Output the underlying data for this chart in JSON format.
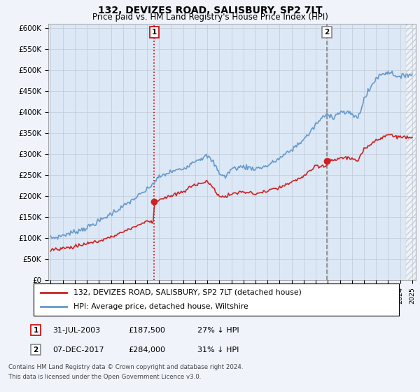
{
  "title": "132, DEVIZES ROAD, SALISBURY, SP2 7LT",
  "subtitle": "Price paid vs. HM Land Registry's House Price Index (HPI)",
  "ylabel_ticks": [
    "£0",
    "£50K",
    "£100K",
    "£150K",
    "£200K",
    "£250K",
    "£300K",
    "£350K",
    "£400K",
    "£450K",
    "£500K",
    "£550K",
    "£600K"
  ],
  "ytick_values": [
    0,
    50000,
    100000,
    150000,
    200000,
    250000,
    300000,
    350000,
    400000,
    450000,
    500000,
    550000,
    600000
  ],
  "ylim": [
    0,
    610000
  ],
  "line1_color": "#cc2222",
  "line2_color": "#6699cc",
  "marker_color": "#cc2222",
  "vline1_color": "#cc0000",
  "vline2_color": "#888888",
  "legend_label1": "132, DEVIZES ROAD, SALISBURY, SP2 7LT (detached house)",
  "legend_label2": "HPI: Average price, detached house, Wiltshire",
  "purchase1_date": "31-JUL-2003",
  "purchase1_price": 187500,
  "purchase1_note": "27% ↓ HPI",
  "purchase2_date": "07-DEC-2017",
  "purchase2_price": 284000,
  "purchase2_note": "31% ↓ HPI",
  "footnote1": "Contains HM Land Registry data © Crown copyright and database right 2024.",
  "footnote2": "This data is licensed under the Open Government Licence v3.0.",
  "background_color": "#f0f4fa",
  "plot_bg_color": "#dce8f5",
  "purchase1_x": 2003.58,
  "purchase2_x": 2017.92,
  "future_x": 2024.5,
  "xlim_left": 1994.8,
  "xlim_right": 2025.3
}
